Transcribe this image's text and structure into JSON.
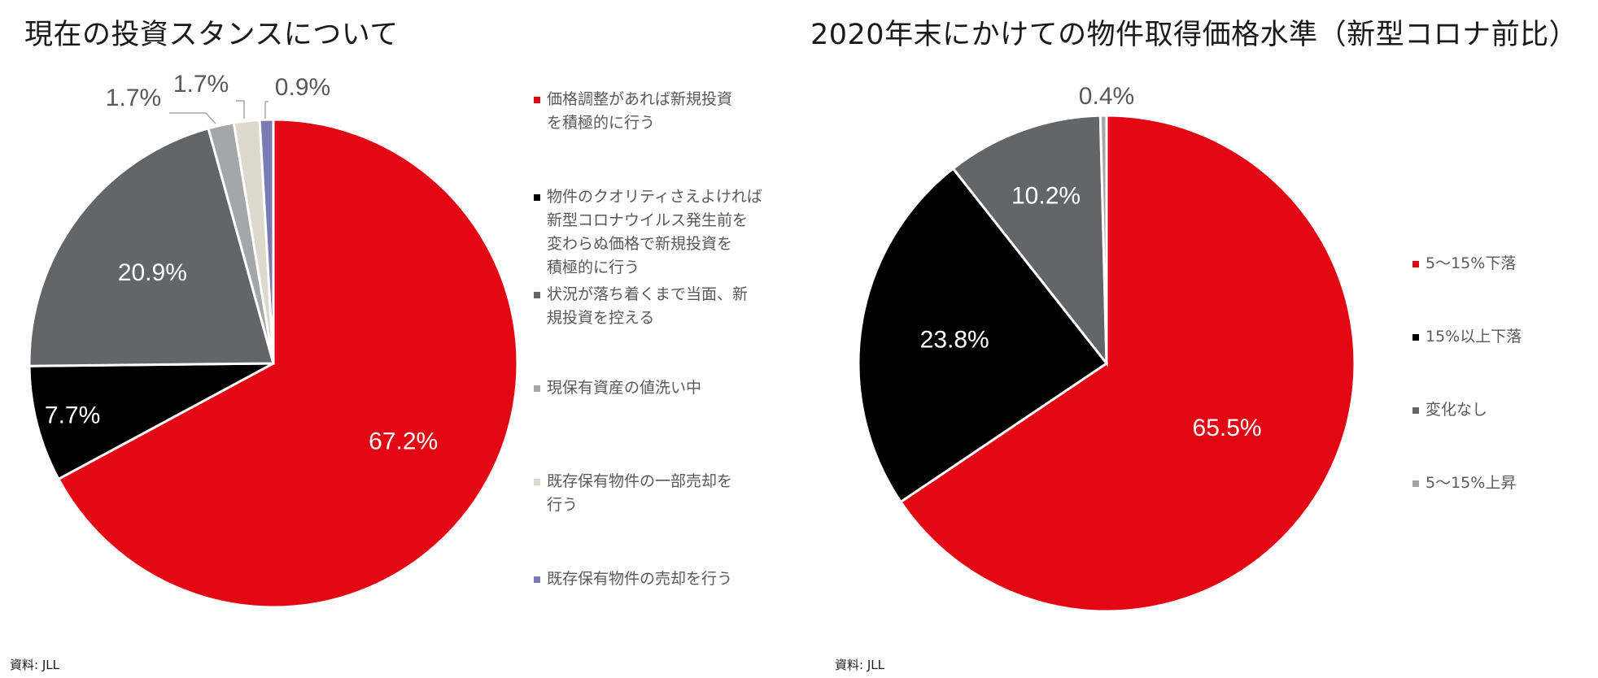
{
  "chart_data": [
    {
      "type": "pie",
      "title": "現在の投資スタンスについて",
      "categories": [
        "価格調整があれば新規投資を積極的に行う",
        "物件のクオリティさえよければ新型コロナウイルス発生前を変わらぬ価格で新規投資を積極的に行う",
        "状況が落ち着くまで当面、新規投資を控える",
        "現保有資産の値洗い中",
        "既存保有物件の一部売却を行う",
        "既存保有物件の売却を行う"
      ],
      "values": [
        67.2,
        7.7,
        20.9,
        1.7,
        1.7,
        0.9
      ],
      "data_labels": [
        "67.2%",
        "7.7%",
        "20.9%",
        "1.7%",
        "1.7%",
        "0.9%"
      ],
      "colors": [
        "#e30613",
        "#000000",
        "#636569",
        "#a5a6a8",
        "#ddd9cc",
        "#7a7bb5"
      ],
      "legend_position": "right",
      "source": "資料: JLL"
    },
    {
      "type": "pie",
      "title": "2020年末にかけての物件取得価格水準（新型コロナ前比）",
      "categories": [
        "5～15%下落",
        "15%以上下落",
        "変化なし",
        "5～15%上昇"
      ],
      "values": [
        65.5,
        23.8,
        10.2,
        0.4
      ],
      "data_labels": [
        "65.5%",
        "23.8%",
        "10.2%",
        "0.4%"
      ],
      "colors": [
        "#e30613",
        "#000000",
        "#636569",
        "#a5a6a8"
      ],
      "legend_position": "right",
      "source": "資料: JLL"
    }
  ]
}
